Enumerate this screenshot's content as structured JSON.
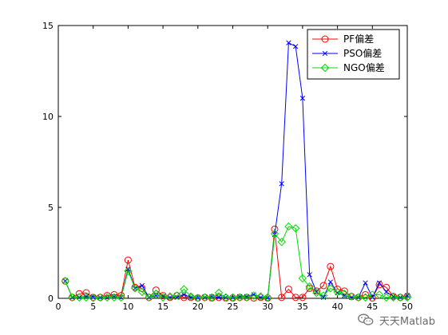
{
  "chart_data": {
    "type": "line",
    "title": "",
    "xlabel": "",
    "ylabel": "",
    "xlim": [
      0,
      50
    ],
    "ylim": [
      0,
      15
    ],
    "xticks": [
      0,
      5,
      10,
      15,
      20,
      25,
      30,
      35,
      40,
      45,
      50
    ],
    "yticks": [
      0,
      5,
      10,
      15
    ],
    "grid": false,
    "legend_position": "top-right",
    "x": [
      1,
      2,
      3,
      4,
      5,
      6,
      7,
      8,
      9,
      10,
      11,
      12,
      13,
      14,
      15,
      16,
      17,
      18,
      19,
      20,
      21,
      22,
      23,
      24,
      25,
      26,
      27,
      28,
      29,
      30,
      31,
      32,
      33,
      34,
      35,
      36,
      37,
      38,
      39,
      40,
      41,
      42,
      43,
      44,
      45,
      46,
      47,
      48,
      49,
      50
    ],
    "series": [
      {
        "name": "PF偏差",
        "color": "#ff0000",
        "marker": "circle",
        "values": [
          0.95,
          0.05,
          0.25,
          0.3,
          0.05,
          0.05,
          0.15,
          0.2,
          0.15,
          2.1,
          0.6,
          0.55,
          0.05,
          0.45,
          0.15,
          0.05,
          0.15,
          0.05,
          0.05,
          0.02,
          0.05,
          0.02,
          0.05,
          0.02,
          0.02,
          0.05,
          0.05,
          0.02,
          0.05,
          0.02,
          3.8,
          0.05,
          0.5,
          0.05,
          0.05,
          0.55,
          0.4,
          0.7,
          1.75,
          0.5,
          0.4,
          0.1,
          0.05,
          0.2,
          0.02,
          0.75,
          0.6,
          0.1,
          0.05,
          0.1
        ]
      },
      {
        "name": "PSO偏差",
        "color": "#0000ff",
        "marker": "x",
        "values": [
          0.95,
          0.05,
          0.05,
          0.1,
          0.05,
          0.05,
          0.05,
          0.1,
          0.05,
          1.6,
          0.55,
          0.7,
          0.05,
          0.15,
          0.1,
          0.05,
          0.05,
          0.2,
          0.05,
          0.02,
          0.05,
          0.1,
          0.05,
          0.05,
          0.05,
          0.1,
          0.1,
          0.2,
          0.05,
          0.02,
          3.5,
          6.3,
          14.05,
          13.85,
          11.0,
          1.3,
          0.35,
          0.05,
          0.9,
          0.3,
          0.15,
          0.05,
          0.05,
          0.85,
          0.05,
          0.85,
          0.35,
          0.1,
          0.05,
          0.15
        ]
      },
      {
        "name": "NGO偏差",
        "color": "#00dd00",
        "marker": "diamond",
        "values": [
          0.95,
          0.05,
          0.05,
          0.05,
          0.02,
          0.05,
          0.05,
          0.05,
          0.05,
          1.5,
          0.55,
          0.35,
          0.05,
          0.25,
          0.05,
          0.1,
          0.15,
          0.5,
          0.1,
          0.02,
          0.05,
          0.05,
          0.3,
          0.05,
          0.05,
          0.05,
          0.05,
          0.15,
          0.1,
          0.05,
          3.55,
          3.1,
          3.95,
          3.85,
          1.1,
          0.65,
          0.3,
          0.15,
          0.55,
          0.35,
          0.25,
          0.1,
          0.05,
          0.05,
          0.2,
          0.2,
          0.05,
          0.05,
          0.05,
          0.05
        ]
      }
    ]
  },
  "watermark": {
    "text": "天天Matlab",
    "icon": "wechat-icon"
  }
}
